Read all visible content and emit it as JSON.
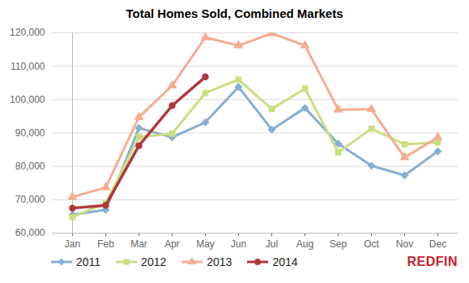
{
  "chart_data": {
    "type": "line",
    "title": "Total Homes Sold, Combined Markets",
    "categories": [
      "Jan",
      "Feb",
      "Mar",
      "Apr",
      "May",
      "Jun",
      "Jul",
      "Aug",
      "Sep",
      "Oct",
      "Nov",
      "Dec"
    ],
    "series": [
      {
        "name": "2011",
        "color": "#86afd1",
        "marker": "diamond",
        "values": [
          65500,
          67000,
          91500,
          88700,
          93200,
          103800,
          91000,
          97500,
          86800,
          80200,
          77300,
          84500
        ]
      },
      {
        "name": "2012",
        "color": "#c9df80",
        "marker": "square",
        "values": [
          64800,
          69000,
          88800,
          89800,
          102000,
          106000,
          97200,
          103300,
          84200,
          91300,
          86600,
          87200
        ]
      },
      {
        "name": "2013",
        "color": "#f4ad90",
        "marker": "triangle",
        "values": [
          70800,
          73700,
          94700,
          104200,
          118600,
          116200,
          119800,
          116200,
          97000,
          97100,
          82700,
          88700
        ]
      },
      {
        "name": "2014",
        "color": "#b0383c",
        "marker": "circle",
        "values": [
          67500,
          68300,
          86200,
          98200,
          106800,
          null,
          null,
          null,
          null,
          null,
          null,
          null
        ]
      }
    ],
    "ylim": [
      60000,
      120000
    ],
    "yticks": [
      {
        "value": 60000,
        "label": "60,000"
      },
      {
        "value": 70000,
        "label": "70,000"
      },
      {
        "value": 80000,
        "label": "80,000"
      },
      {
        "value": 90000,
        "label": "90,000"
      },
      {
        "value": 100000,
        "label": "100,000"
      },
      {
        "value": 110000,
        "label": "110,000"
      },
      {
        "value": 120000,
        "label": "120,000"
      }
    ],
    "grid": true,
    "legend": "bottom",
    "annotations": [
      "REDFIN"
    ]
  }
}
